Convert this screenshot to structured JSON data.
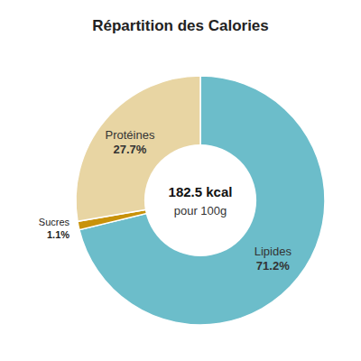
{
  "chart_data": {
    "type": "pie",
    "title": "Répartition des Calories",
    "categories": [
      "Lipides",
      "Sucres",
      "Protéines"
    ],
    "values": [
      71.2,
      1.1,
      27.7
    ],
    "value_labels": [
      "71.2%",
      "1.1%",
      "27.7%"
    ],
    "colors": [
      "#6cbdca",
      "#c8920a",
      "#e8d5a3"
    ],
    "data_labels": true,
    "annotations": [
      "182.5 kcal",
      "pour 100g"
    ]
  }
}
